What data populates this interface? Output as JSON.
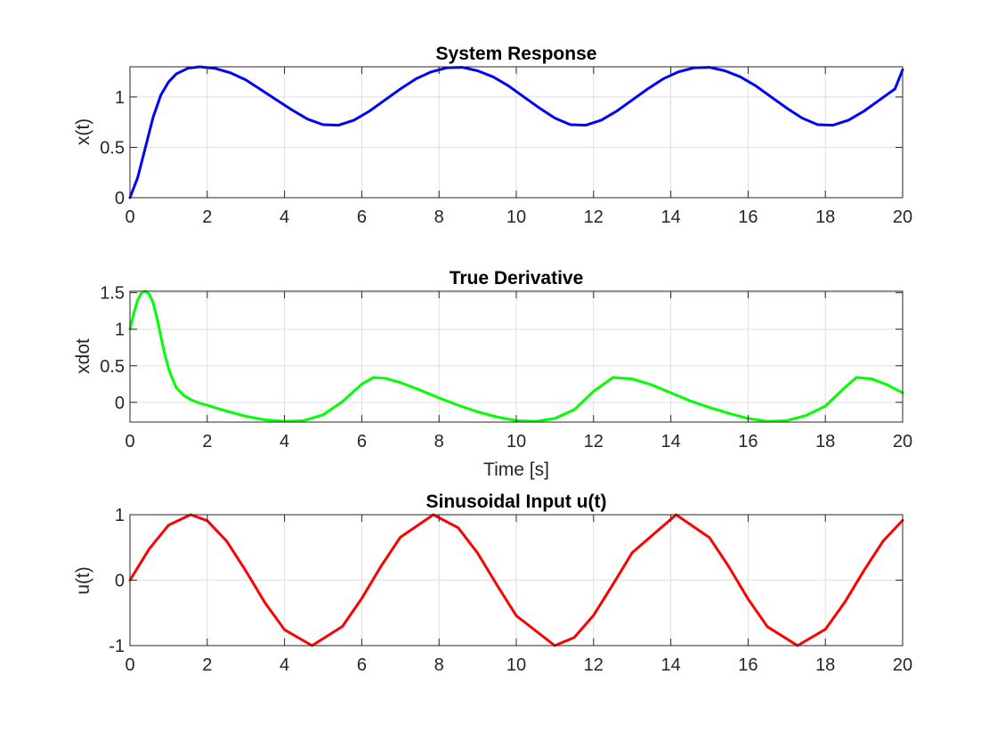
{
  "chart_data": [
    {
      "type": "line",
      "title": "System Response",
      "xlabel": "",
      "ylabel": "x(t)",
      "xlim": [
        0,
        20
      ],
      "ylim": [
        0,
        1.3
      ],
      "xticks": [
        0,
        2,
        4,
        6,
        8,
        10,
        12,
        14,
        16,
        18,
        20
      ],
      "yticks": [
        0,
        0.5,
        1
      ],
      "ytick_labels": [
        "0",
        "0.5",
        "1"
      ],
      "grid": true,
      "series": [
        {
          "color": "#0000ff",
          "x": [
            0,
            0.2,
            0.4,
            0.6,
            0.8,
            1.0,
            1.2,
            1.5,
            1.8,
            2.2,
            2.6,
            3.0,
            3.4,
            3.8,
            4.2,
            4.6,
            5.0,
            5.4,
            5.8,
            6.2,
            6.6,
            7.0,
            7.4,
            7.8,
            8.2,
            8.6,
            9.0,
            9.4,
            9.8,
            10.2,
            10.6,
            11.0,
            11.4,
            11.8,
            12.2,
            12.6,
            13.0,
            13.4,
            13.8,
            14.2,
            14.6,
            15.0,
            15.4,
            15.8,
            16.2,
            16.6,
            17.0,
            17.4,
            17.8,
            18.2,
            18.6,
            19.0,
            19.4,
            19.8,
            20.0
          ],
          "y": [
            0,
            0.2,
            0.5,
            0.8,
            1.02,
            1.15,
            1.23,
            1.285,
            1.3,
            1.285,
            1.24,
            1.17,
            1.07,
            0.97,
            0.87,
            0.78,
            0.725,
            0.72,
            0.77,
            0.86,
            0.97,
            1.08,
            1.18,
            1.25,
            1.29,
            1.295,
            1.26,
            1.2,
            1.11,
            1.0,
            0.89,
            0.79,
            0.725,
            0.72,
            0.77,
            0.86,
            0.97,
            1.08,
            1.18,
            1.25,
            1.29,
            1.295,
            1.26,
            1.2,
            1.11,
            1.0,
            0.89,
            0.79,
            0.725,
            0.72,
            0.77,
            0.86,
            0.97,
            1.08,
            1.27
          ]
        }
      ]
    },
    {
      "type": "line",
      "title": "True Derivative",
      "xlabel": "Time [s]",
      "ylabel": "xdot",
      "xlim": [
        0,
        20
      ],
      "ylim": [
        -0.27,
        1.52
      ],
      "xticks": [
        0,
        2,
        4,
        6,
        8,
        10,
        12,
        14,
        16,
        18,
        20
      ],
      "yticks": [
        0,
        0.5,
        1,
        1.5
      ],
      "ytick_labels": [
        "0",
        "0.5",
        "1",
        "1.5"
      ],
      "grid": true,
      "series": [
        {
          "color": "#00ff00",
          "x": [
            0,
            0.1,
            0.2,
            0.3,
            0.4,
            0.5,
            0.6,
            0.7,
            0.8,
            0.9,
            1.0,
            1.1,
            1.2,
            1.4,
            1.6,
            1.8,
            2.0,
            2.5,
            3.0,
            3.5,
            4.0,
            4.5,
            5.0,
            5.5,
            6.0,
            6.3,
            6.6,
            7.0,
            7.5,
            8.0,
            8.5,
            9.0,
            9.5,
            10.0,
            10.5,
            11.0,
            11.5,
            12.0,
            12.5,
            13.0,
            13.5,
            14.0,
            14.5,
            15.0,
            15.5,
            16.0,
            16.5,
            17.0,
            17.5,
            18.0,
            18.5,
            18.8,
            19.2,
            19.6,
            20.0
          ],
          "y": [
            1.0,
            1.22,
            1.4,
            1.5,
            1.52,
            1.48,
            1.36,
            1.15,
            0.9,
            0.66,
            0.46,
            0.32,
            0.2,
            0.09,
            0.03,
            -0.01,
            -0.04,
            -0.12,
            -0.19,
            -0.24,
            -0.26,
            -0.25,
            -0.17,
            0.01,
            0.25,
            0.34,
            0.33,
            0.27,
            0.17,
            0.06,
            -0.04,
            -0.13,
            -0.2,
            -0.25,
            -0.26,
            -0.22,
            -0.1,
            0.15,
            0.34,
            0.32,
            0.24,
            0.13,
            0.02,
            -0.07,
            -0.15,
            -0.22,
            -0.26,
            -0.25,
            -0.18,
            -0.05,
            0.2,
            0.34,
            0.32,
            0.24,
            0.13
          ]
        }
      ]
    },
    {
      "type": "line",
      "title": "Sinusoidal Input u(t)",
      "xlabel": "",
      "ylabel": "u(t)",
      "xlim": [
        0,
        20
      ],
      "ylim": [
        -1,
        1
      ],
      "xticks": [
        0,
        2,
        4,
        6,
        8,
        10,
        12,
        14,
        16,
        18,
        20
      ],
      "yticks": [
        -1,
        0,
        1
      ],
      "ytick_labels": [
        "-1",
        "0",
        "1"
      ],
      "grid": true,
      "series": [
        {
          "color": "#ff0000",
          "x": [
            0,
            0.5,
            1.0,
            1.5708,
            2.0,
            2.5,
            3.0,
            3.5,
            4.0,
            4.7124,
            5.5,
            6.0,
            6.5,
            7.0,
            7.854,
            8.5,
            9.0,
            9.5,
            10.0,
            10.9956,
            11.5,
            12.0,
            12.5,
            13.0,
            14.1372,
            15.0,
            15.5,
            16.0,
            16.5,
            17.2788,
            18.0,
            18.5,
            19.0,
            19.5,
            20.0
          ],
          "y": [
            0,
            0.479,
            0.841,
            1.0,
            0.909,
            0.598,
            0.141,
            -0.351,
            -0.757,
            -1.0,
            -0.706,
            -0.279,
            0.215,
            0.657,
            1.0,
            0.798,
            0.412,
            -0.075,
            -0.544,
            -1.0,
            -0.876,
            -0.537,
            -0.066,
            0.42,
            1.0,
            0.65,
            0.206,
            -0.288,
            -0.712,
            -1.0,
            -0.751,
            -0.339,
            0.149,
            0.602,
            0.913
          ]
        }
      ]
    }
  ]
}
